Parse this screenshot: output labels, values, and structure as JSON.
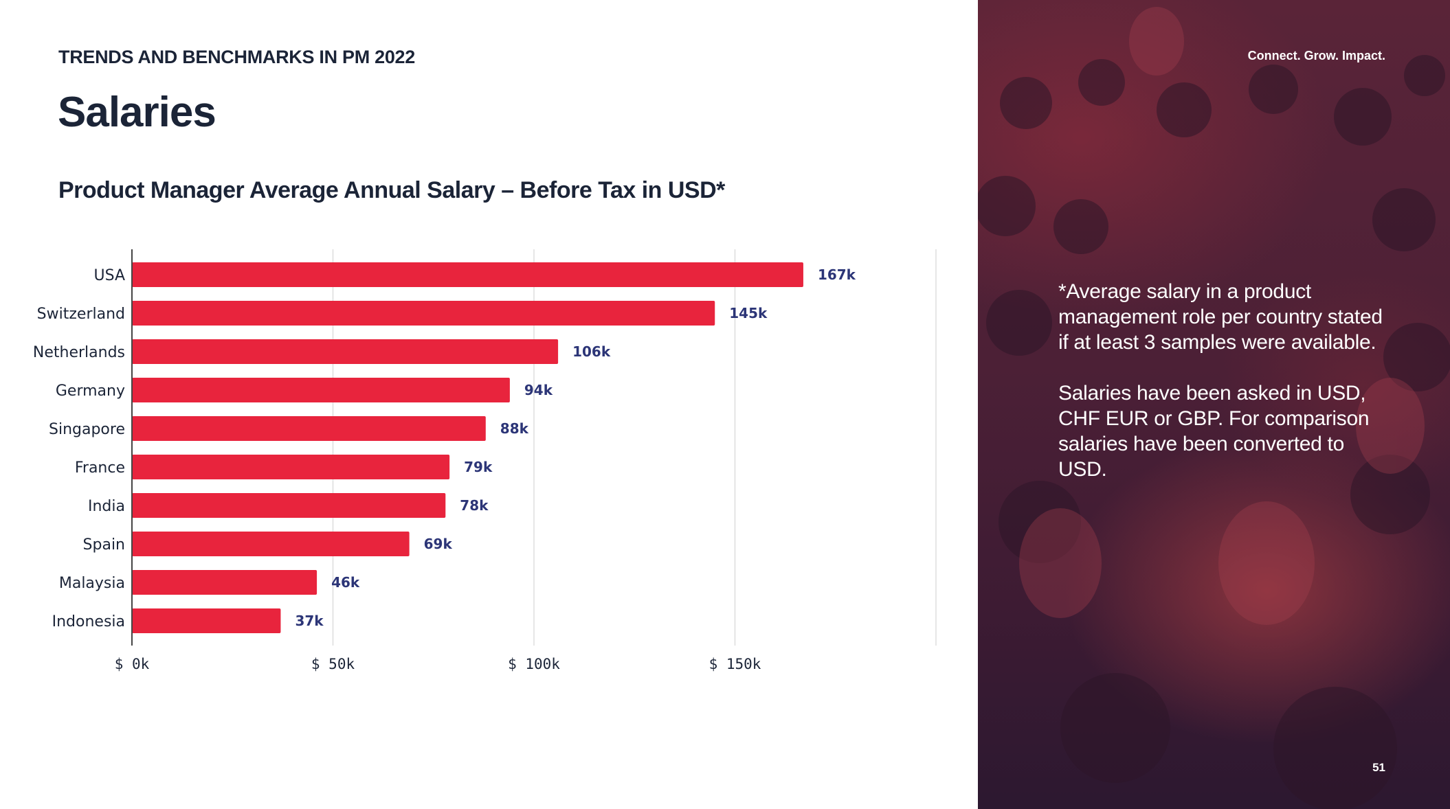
{
  "header": {
    "kicker": "TRENDS AND BENCHMARKS IN PM 2022",
    "title": "Salaries"
  },
  "sidebar": {
    "tagline": "Connect. Grow. Impact.",
    "note_1": "*Average salary in a product management  role per country stated if at least 3 samples were available.",
    "note_2": "Salaries have been asked in USD, CHF EUR or GBP. For comparison salaries have been converted to USD.",
    "page_number": "51"
  },
  "colors": {
    "bar": "#e8243d",
    "value_label": "#2c3577",
    "text_dark": "#1b2437",
    "axis": "#444444",
    "grid": "#dddddd"
  },
  "chart_data": {
    "type": "bar",
    "orientation": "horizontal",
    "title": "Product Manager Average Annual Salary – Before Tax in USD*",
    "xlabel": "",
    "ylabel": "",
    "categories": [
      "USA",
      "Switzerland",
      "Netherlands",
      "Germany",
      "Singapore",
      "France",
      "India",
      "Spain",
      "Malaysia",
      "Indonesia"
    ],
    "values": [
      167,
      145,
      106,
      94,
      88,
      79,
      78,
      69,
      46,
      37
    ],
    "value_labels": [
      "167k",
      "145k",
      "106k",
      "94k",
      "88k",
      "79k",
      "78k",
      "69k",
      "46k",
      "37k"
    ],
    "units": "thousand USD",
    "xlim": [
      0,
      200
    ],
    "ticks": [
      0,
      50,
      100,
      150
    ],
    "tick_labels": [
      "$ 0k",
      "$ 50k",
      "$ 100k",
      "$ 150k"
    ],
    "grid": true
  }
}
